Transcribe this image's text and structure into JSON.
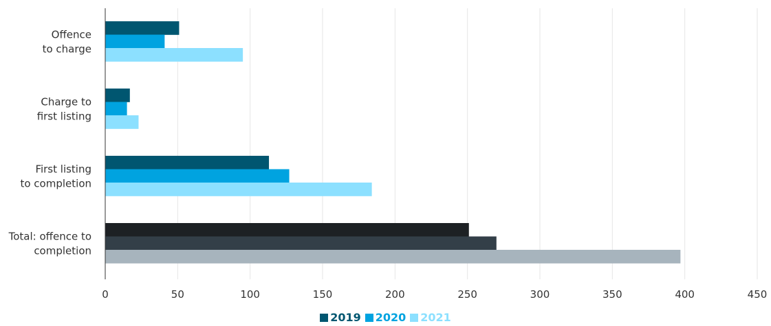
{
  "chart_data": {
    "type": "bar",
    "orientation": "horizontal",
    "categories": [
      [
        "Offence",
        "to charge"
      ],
      [
        "Charge to",
        "first listing"
      ],
      [
        "First listing",
        "to completion"
      ],
      [
        "Total: offence to",
        "completion"
      ]
    ],
    "series": [
      {
        "name": "2019",
        "values": [
          51,
          17,
          113,
          251
        ],
        "color": "#005670",
        "total_color": "#1d2124"
      },
      {
        "name": "2020",
        "values": [
          41,
          15,
          127,
          270
        ],
        "color": "#00a3e0",
        "total_color": "#333f48"
      },
      {
        "name": "2021",
        "values": [
          95,
          23,
          184,
          397
        ],
        "color": "#8ce0ff",
        "total_color": "#a7b4bd"
      }
    ],
    "xlim": [
      0,
      450
    ],
    "xticks": [
      "0",
      "50",
      "100",
      "150",
      "200",
      "250",
      "300",
      "350",
      "400",
      "450"
    ],
    "grid": true,
    "legend_position": "bottom-center",
    "title": "",
    "xlabel": "",
    "ylabel": ""
  }
}
